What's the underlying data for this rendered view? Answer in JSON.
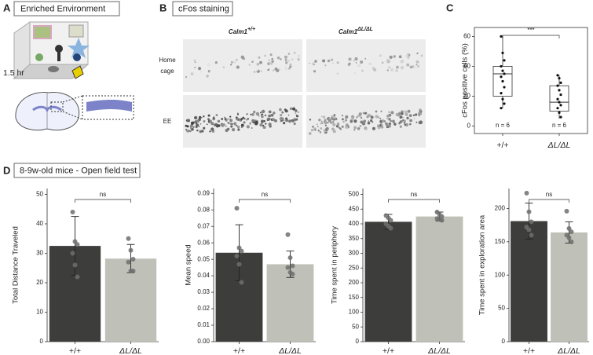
{
  "panels": {
    "A": {
      "label": "A",
      "title": "Enriched Environment",
      "duration": "1.5 hr"
    },
    "B": {
      "label": "B",
      "title": "cFos staining",
      "columns": [
        {
          "gene": "Calm1",
          "genotype": "+/+"
        },
        {
          "gene": "Calm1",
          "genotype": "ΔL/ΔL"
        }
      ],
      "rows": [
        [
          "Home",
          "cage"
        ],
        [
          "EE"
        ]
      ]
    },
    "C": {
      "label": "C"
    },
    "D": {
      "label": "D",
      "title": "8-9w-old mice - Open field test"
    }
  },
  "chart_data": [
    {
      "type": "box",
      "ylabel": "cFos positive cells (%)",
      "categories": [
        "+/+",
        "ΔL/ΔL"
      ],
      "boxes": [
        {
          "min": 12,
          "q1": 20,
          "median": 35,
          "q3": 40,
          "max": 60
        },
        {
          "min": 5,
          "q1": 10,
          "median": 16,
          "q3": 27,
          "max": 34
        }
      ],
      "points": [
        [
          60,
          49,
          44,
          40,
          37,
          35,
          33,
          30,
          26,
          22,
          18,
          15,
          12
        ],
        [
          34,
          32,
          29,
          27,
          24,
          21,
          18,
          16,
          14,
          12,
          9,
          6
        ]
      ],
      "n_labels": [
        "n = 6",
        "n = 6"
      ],
      "annotation": "***",
      "ylim": [
        -5,
        66
      ],
      "yticks": [
        0,
        20,
        40,
        60
      ],
      "color": "#ffffff"
    },
    {
      "type": "bar",
      "ylabel": "Total Distance Traveled",
      "categories": [
        "+/+",
        "ΔL/ΔL"
      ],
      "values": [
        32.5,
        28.2
      ],
      "errors": [
        10,
        4.8
      ],
      "points": [
        [
          44,
          34,
          33,
          30,
          26,
          22
        ],
        [
          35,
          31,
          28,
          27,
          24,
          24
        ]
      ],
      "colors": [
        "#3d3d3b",
        "#bfc1b8"
      ],
      "annotation": "ns",
      "ylim": [
        0,
        52
      ],
      "yticks": [
        0,
        10,
        20,
        30,
        40,
        50
      ]
    },
    {
      "type": "bar",
      "ylabel": "Mean speed",
      "categories": [
        "+/+",
        "ΔL/ΔL"
      ],
      "values": [
        0.054,
        0.047
      ],
      "errors": [
        0.017,
        0.008
      ],
      "points": [
        [
          0.081,
          0.057,
          0.055,
          0.052,
          0.047,
          0.036
        ],
        [
          0.065,
          0.051,
          0.046,
          0.045,
          0.042,
          0.041
        ]
      ],
      "colors": [
        "#3d3d3b",
        "#bfc1b8"
      ],
      "annotation": "ns",
      "ylim": [
        0,
        0.093
      ],
      "yticks": [
        {
          "value": 0,
          "label": "0.00"
        },
        0.01,
        0.02,
        0.03,
        0.04,
        0.05,
        0.06,
        0.07,
        0.08,
        0.09
      ]
    },
    {
      "type": "bar",
      "ylabel": "Time spent in periphery",
      "categories": [
        "+/+",
        "ΔL/ΔL"
      ],
      "values": [
        407,
        425
      ],
      "errors": [
        25,
        15
      ],
      "points": [
        [
          428,
          420,
          412,
          400,
          392,
          385
        ],
        [
          440,
          432,
          425,
          418,
          415,
          412
        ]
      ],
      "colors": [
        "#3d3d3b",
        "#bfc1b8"
      ],
      "annotation": "ns",
      "ylim": [
        0,
        520
      ],
      "yticks": [
        0,
        50,
        100,
        150,
        200,
        250,
        300,
        350,
        400,
        450,
        500
      ]
    },
    {
      "type": "bar",
      "ylabel": "Time spent in exploration area",
      "categories": [
        "+/+",
        "ΔL/ΔL"
      ],
      "values": [
        181,
        164
      ],
      "errors": [
        27,
        16
      ],
      "points": [
        [
          223,
          195,
          180,
          172,
          168,
          160
        ],
        [
          196,
          170,
          165,
          160,
          156,
          150
        ]
      ],
      "colors": [
        "#3d3d3b",
        "#bfc1b8"
      ],
      "annotation": "ns",
      "ylim": [
        0,
        230
      ],
      "yticks": [
        0,
        50,
        100,
        150,
        200
      ]
    }
  ]
}
